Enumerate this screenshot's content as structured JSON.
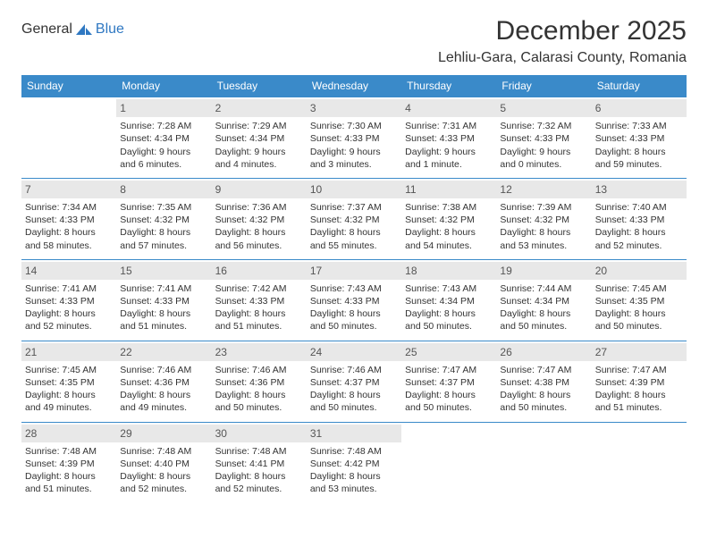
{
  "brand": {
    "text1": "General",
    "text2": "Blue"
  },
  "title": "December 2025",
  "location": "Lehliu-Gara, Calarasi County, Romania",
  "colors": {
    "header_blue": "#3a8ac9",
    "logo_blue": "#2f78c2",
    "daynum_bg": "#e8e8e8",
    "text": "#333333",
    "background": "#ffffff"
  },
  "days_of_week": [
    "Sunday",
    "Monday",
    "Tuesday",
    "Wednesday",
    "Thursday",
    "Friday",
    "Saturday"
  ],
  "weeks": [
    [
      {
        "empty": true
      },
      {
        "n": "1",
        "sr": "Sunrise: 7:28 AM",
        "ss": "Sunset: 4:34 PM",
        "dl": "Daylight: 9 hours and 6 minutes."
      },
      {
        "n": "2",
        "sr": "Sunrise: 7:29 AM",
        "ss": "Sunset: 4:34 PM",
        "dl": "Daylight: 9 hours and 4 minutes."
      },
      {
        "n": "3",
        "sr": "Sunrise: 7:30 AM",
        "ss": "Sunset: 4:33 PM",
        "dl": "Daylight: 9 hours and 3 minutes."
      },
      {
        "n": "4",
        "sr": "Sunrise: 7:31 AM",
        "ss": "Sunset: 4:33 PM",
        "dl": "Daylight: 9 hours and 1 minute."
      },
      {
        "n": "5",
        "sr": "Sunrise: 7:32 AM",
        "ss": "Sunset: 4:33 PM",
        "dl": "Daylight: 9 hours and 0 minutes."
      },
      {
        "n": "6",
        "sr": "Sunrise: 7:33 AM",
        "ss": "Sunset: 4:33 PM",
        "dl": "Daylight: 8 hours and 59 minutes."
      }
    ],
    [
      {
        "n": "7",
        "sr": "Sunrise: 7:34 AM",
        "ss": "Sunset: 4:33 PM",
        "dl": "Daylight: 8 hours and 58 minutes."
      },
      {
        "n": "8",
        "sr": "Sunrise: 7:35 AM",
        "ss": "Sunset: 4:32 PM",
        "dl": "Daylight: 8 hours and 57 minutes."
      },
      {
        "n": "9",
        "sr": "Sunrise: 7:36 AM",
        "ss": "Sunset: 4:32 PM",
        "dl": "Daylight: 8 hours and 56 minutes."
      },
      {
        "n": "10",
        "sr": "Sunrise: 7:37 AM",
        "ss": "Sunset: 4:32 PM",
        "dl": "Daylight: 8 hours and 55 minutes."
      },
      {
        "n": "11",
        "sr": "Sunrise: 7:38 AM",
        "ss": "Sunset: 4:32 PM",
        "dl": "Daylight: 8 hours and 54 minutes."
      },
      {
        "n": "12",
        "sr": "Sunrise: 7:39 AM",
        "ss": "Sunset: 4:32 PM",
        "dl": "Daylight: 8 hours and 53 minutes."
      },
      {
        "n": "13",
        "sr": "Sunrise: 7:40 AM",
        "ss": "Sunset: 4:33 PM",
        "dl": "Daylight: 8 hours and 52 minutes."
      }
    ],
    [
      {
        "n": "14",
        "sr": "Sunrise: 7:41 AM",
        "ss": "Sunset: 4:33 PM",
        "dl": "Daylight: 8 hours and 52 minutes."
      },
      {
        "n": "15",
        "sr": "Sunrise: 7:41 AM",
        "ss": "Sunset: 4:33 PM",
        "dl": "Daylight: 8 hours and 51 minutes."
      },
      {
        "n": "16",
        "sr": "Sunrise: 7:42 AM",
        "ss": "Sunset: 4:33 PM",
        "dl": "Daylight: 8 hours and 51 minutes."
      },
      {
        "n": "17",
        "sr": "Sunrise: 7:43 AM",
        "ss": "Sunset: 4:33 PM",
        "dl": "Daylight: 8 hours and 50 minutes."
      },
      {
        "n": "18",
        "sr": "Sunrise: 7:43 AM",
        "ss": "Sunset: 4:34 PM",
        "dl": "Daylight: 8 hours and 50 minutes."
      },
      {
        "n": "19",
        "sr": "Sunrise: 7:44 AM",
        "ss": "Sunset: 4:34 PM",
        "dl": "Daylight: 8 hours and 50 minutes."
      },
      {
        "n": "20",
        "sr": "Sunrise: 7:45 AM",
        "ss": "Sunset: 4:35 PM",
        "dl": "Daylight: 8 hours and 50 minutes."
      }
    ],
    [
      {
        "n": "21",
        "sr": "Sunrise: 7:45 AM",
        "ss": "Sunset: 4:35 PM",
        "dl": "Daylight: 8 hours and 49 minutes."
      },
      {
        "n": "22",
        "sr": "Sunrise: 7:46 AM",
        "ss": "Sunset: 4:36 PM",
        "dl": "Daylight: 8 hours and 49 minutes."
      },
      {
        "n": "23",
        "sr": "Sunrise: 7:46 AM",
        "ss": "Sunset: 4:36 PM",
        "dl": "Daylight: 8 hours and 50 minutes."
      },
      {
        "n": "24",
        "sr": "Sunrise: 7:46 AM",
        "ss": "Sunset: 4:37 PM",
        "dl": "Daylight: 8 hours and 50 minutes."
      },
      {
        "n": "25",
        "sr": "Sunrise: 7:47 AM",
        "ss": "Sunset: 4:37 PM",
        "dl": "Daylight: 8 hours and 50 minutes."
      },
      {
        "n": "26",
        "sr": "Sunrise: 7:47 AM",
        "ss": "Sunset: 4:38 PM",
        "dl": "Daylight: 8 hours and 50 minutes."
      },
      {
        "n": "27",
        "sr": "Sunrise: 7:47 AM",
        "ss": "Sunset: 4:39 PM",
        "dl": "Daylight: 8 hours and 51 minutes."
      }
    ],
    [
      {
        "n": "28",
        "sr": "Sunrise: 7:48 AM",
        "ss": "Sunset: 4:39 PM",
        "dl": "Daylight: 8 hours and 51 minutes."
      },
      {
        "n": "29",
        "sr": "Sunrise: 7:48 AM",
        "ss": "Sunset: 4:40 PM",
        "dl": "Daylight: 8 hours and 52 minutes."
      },
      {
        "n": "30",
        "sr": "Sunrise: 7:48 AM",
        "ss": "Sunset: 4:41 PM",
        "dl": "Daylight: 8 hours and 52 minutes."
      },
      {
        "n": "31",
        "sr": "Sunrise: 7:48 AM",
        "ss": "Sunset: 4:42 PM",
        "dl": "Daylight: 8 hours and 53 minutes."
      },
      {
        "empty": true
      },
      {
        "empty": true
      },
      {
        "empty": true
      }
    ]
  ]
}
